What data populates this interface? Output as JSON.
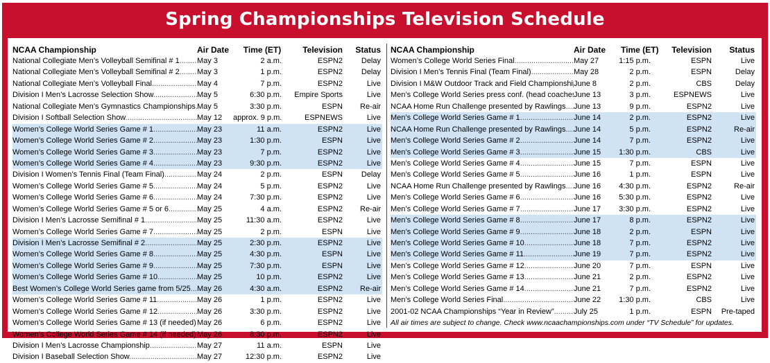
{
  "title": "Spring Championships Television Schedule",
  "headers": {
    "name": "NCAA Championship",
    "date": "Air Date",
    "time": "Time (ET)",
    "tv": "Television",
    "status": "Status"
  },
  "colors": {
    "frame": "#c8102e",
    "highlight": "#cfe3f5"
  },
  "left_rows": [
    {
      "name": "National Collegiate Men’s Volleyball Semifinal # 1",
      "date": "May 3",
      "time": "2 a.m.",
      "tv": "ESPN2",
      "status": "Delay",
      "hl": false
    },
    {
      "name": "National Collegiate Men’s Volleyball Semifinal # 2",
      "date": "May 3",
      "time": "1 p.m.",
      "tv": "ESPN2",
      "status": "Delay",
      "hl": false
    },
    {
      "name": "National Collegiate Men’s Volleyball Final",
      "date": "May 4",
      "time": "7 p.m.",
      "tv": "ESPN2",
      "status": "Live",
      "hl": false
    },
    {
      "name": "Division I Men’s Lacrosse Selection Show",
      "date": "May 5",
      "time": "6:30 p.m.",
      "tv": "Empire Sports",
      "status": "Live",
      "hl": false
    },
    {
      "name": "National Collegiate Men’s Gymnastics Championships",
      "date": "May 5",
      "time": "3:30 p.m.",
      "tv": "ESPN",
      "status": "Re-air",
      "hl": false
    },
    {
      "name": "Division I Softball Selection Show",
      "date": "May 12",
      "time": "approx. 9 p.m.",
      "tv": "ESPNEWS",
      "status": "Live",
      "hl": false
    },
    {
      "name": "Women’s College World Series Game # 1",
      "date": "May 23",
      "time": "11 a.m.",
      "tv": "ESPN2",
      "status": "Live",
      "hl": true
    },
    {
      "name": "Women’s College World Series Game # 2",
      "date": "May 23",
      "time": "1:30 p.m.",
      "tv": "ESPN",
      "status": "Live",
      "hl": true
    },
    {
      "name": "Women’s College World Series Game # 3",
      "date": "May 23",
      "time": "7 p.m.",
      "tv": "ESPN2",
      "status": "Live",
      "hl": true
    },
    {
      "name": "Women’s College World Series Game # 4",
      "date": "May 23",
      "time": "9:30 p.m.",
      "tv": "ESPN2",
      "status": "Live",
      "hl": true
    },
    {
      "name": "Division I Women’s Tennis Final (Team Final)",
      "date": "May 24",
      "time": "2 p.m.",
      "tv": "ESPN",
      "status": "Delay",
      "hl": false
    },
    {
      "name": "Women’s College World Series Game # 5",
      "date": "May 24",
      "time": "5 p.m.",
      "tv": "ESPN2",
      "status": "Live",
      "hl": false
    },
    {
      "name": "Women’s College World Series Game # 6",
      "date": "May 24",
      "time": "7:30 p.m.",
      "tv": "ESPN2",
      "status": "Live",
      "hl": false
    },
    {
      "name": "Women’s College World Series Game # 5 or 6",
      "date": "May 25",
      "time": "4 a.m.",
      "tv": "ESPN2",
      "status": "Re-air",
      "hl": false
    },
    {
      "name": "Division I Men’s Lacrosse Semifinal # 1",
      "date": "May 25",
      "time": "11:30 a.m.",
      "tv": "ESPN2",
      "status": "Live",
      "hl": false
    },
    {
      "name": "Women’s College World Series Game # 7",
      "date": "May 25",
      "time": "2 p.m.",
      "tv": "ESPN",
      "status": "Live",
      "hl": false
    },
    {
      "name": "Division I Men’s Lacrosse Semifinal # 2",
      "date": "May 25",
      "time": "2:30 p.m.",
      "tv": "ESPN2",
      "status": "Live",
      "hl": true
    },
    {
      "name": "Women’s College World Series Game # 8",
      "date": "May 25",
      "time": "4:30 p.m.",
      "tv": "ESPN",
      "status": "Live",
      "hl": true
    },
    {
      "name": "Women’s College World Series Game # 9",
      "date": "May 25",
      "time": "7:30 p.m.",
      "tv": "ESPN",
      "status": "Live",
      "hl": true
    },
    {
      "name": "Women’s College World Series Game # 10",
      "date": "May 25",
      "time": "10 p.m.",
      "tv": "ESPN2",
      "status": "Live",
      "hl": true
    },
    {
      "name": "Best Women’s College World Series game from 5/25",
      "date": "May 26",
      "time": "4:30 a.m.",
      "tv": "ESPN2",
      "status": "Re-air",
      "hl": true
    },
    {
      "name": "Women’s College World Series Game # 11",
      "date": "May 26",
      "time": "1 p.m.",
      "tv": "ESPN2",
      "status": "Live",
      "hl": false
    },
    {
      "name": "Women’s College World Series Game # 12",
      "date": "May 26",
      "time": "3:30 p.m.",
      "tv": "ESPN2",
      "status": "Live",
      "hl": false
    },
    {
      "name": "Women’s College World Series Game # 13 (if needed)",
      "date": "May 26",
      "time": "6 p.m.",
      "tv": "ESPN2",
      "status": "Live",
      "hl": false
    },
    {
      "name": "Women’s College World Series Game # 14 (if needed)",
      "date": "May 26",
      "time": "8:30 p.m.",
      "tv": "ESPN2",
      "status": "Live",
      "hl": false
    },
    {
      "name": "Division I Men’s Lacrosse Championship",
      "date": "May 27",
      "time": "11 a.m.",
      "tv": "ESPN",
      "status": "Live",
      "hl": false
    },
    {
      "name": "Division I Baseball Selection Show",
      "date": "May 27",
      "time": "12:30 p.m.",
      "tv": "ESPN2",
      "status": "Live",
      "hl": false
    }
  ],
  "right_rows": [
    {
      "name": "Women’s College World Series Final",
      "date": "May 27",
      "time": "1:15 p.m.",
      "tv": "ESPN",
      "status": "Live",
      "hl": false
    },
    {
      "name": "Division I Men’s Tennis Final (Team Final)",
      "date": "May 28",
      "time": "2 p.m.",
      "tv": "ESPN",
      "status": "Delay",
      "hl": false
    },
    {
      "name": "Division I M&W Outdoor Track and Field Championships",
      "date": "June 8",
      "time": "2 p.m.",
      "tv": "CBS",
      "status": "Delay",
      "hl": false
    },
    {
      "name": "Men’s College World Series press conf. (head coaches)",
      "date": "June 13",
      "time": "3 p.m.",
      "tv": "ESPNEWS",
      "status": "Live",
      "hl": false
    },
    {
      "name": "NCAA Home Run Challenge presented by Rawlings",
      "date": "June 13",
      "time": "9 p.m.",
      "tv": "ESPN2",
      "status": "Live",
      "hl": false
    },
    {
      "name": "Men’s College World Series Game # 1",
      "date": "June 14",
      "time": "2 p.m.",
      "tv": "ESPN2",
      "status": "Live",
      "hl": true
    },
    {
      "name": "NCAA Home Run Challenge presented by Rawlings",
      "date": "June 14",
      "time": "5 p.m.",
      "tv": "ESPN2",
      "status": "Re-air",
      "hl": true
    },
    {
      "name": "Men’s College World Series Game # 2",
      "date": "June 14",
      "time": "7 p.m.",
      "tv": "ESPN2",
      "status": "Live",
      "hl": true
    },
    {
      "name": "Men’s College World Series Game # 3",
      "date": "June 15",
      "time": "1:30 p.m.",
      "tv": "CBS",
      "status": "Live",
      "hl": true
    },
    {
      "name": "Men’s College World Series Game # 4",
      "date": "June 15",
      "time": "7 p.m.",
      "tv": "ESPN",
      "status": "Live",
      "hl": false
    },
    {
      "name": "Men’s College World Series Game # 5",
      "date": "June 16",
      "time": "1 p.m.",
      "tv": "ESPN",
      "status": "Live",
      "hl": false
    },
    {
      "name": "NCAA Home Run Challenge presented by Rawlings",
      "date": "June 16",
      "time": "4:30 p.m.",
      "tv": "ESPN2",
      "status": "Re-air",
      "hl": false
    },
    {
      "name": "Men’s College World Series Game # 6",
      "date": "June 16",
      "time": "5:30 p.m.",
      "tv": "ESPN2",
      "status": "Live",
      "hl": false
    },
    {
      "name": "Men’s College World Series Game # 7",
      "date": "June 17",
      "time": "3:30 p.m.",
      "tv": "ESPN2",
      "status": "Live",
      "hl": false
    },
    {
      "name": "Men’s College World Series Game # 8",
      "date": "June 17",
      "time": "8 p.m.",
      "tv": "ESPN2",
      "status": "Live",
      "hl": true
    },
    {
      "name": "Men’s College World Series Game # 9",
      "date": "June 18",
      "time": "2 p.m.",
      "tv": "ESPN",
      "status": "Live",
      "hl": true
    },
    {
      "name": "Men’s College World Series Game # 10",
      "date": "June 18",
      "time": "7 p.m.",
      "tv": "ESPN2",
      "status": "Live",
      "hl": true
    },
    {
      "name": "Men’s College World Series Game # 11",
      "date": "June 19",
      "time": "7 p.m.",
      "tv": "ESPN2",
      "status": "Live",
      "hl": true
    },
    {
      "name": "Men’s College World Series Game # 12",
      "date": "June 20",
      "time": "7 p.m.",
      "tv": "ESPN",
      "status": "Live",
      "hl": false
    },
    {
      "name": "Men’s College World Series Game # 13",
      "date": "June 21",
      "time": "2 p.m.",
      "tv": "ESPN2",
      "status": "Live",
      "hl": false
    },
    {
      "name": "Men’s College World Series Game # 14",
      "date": "June 21",
      "time": "7 p.m.",
      "tv": "ESPN2",
      "status": "Live",
      "hl": false
    },
    {
      "name": "Men’s College World Series Final",
      "date": "June 22",
      "time": "1:30 p.m.",
      "tv": "CBS",
      "status": "Live",
      "hl": false
    },
    {
      "name": "2001-02 NCAA Championships “Year in Review”",
      "date": "July 25",
      "time": "1 p.m.",
      "tv": "ESPN",
      "status": "Pre-taped",
      "hl": false
    }
  ],
  "footnote": "All air times are subject to change. Check www.ncaachampionships.com under “TV Schedule” for updates."
}
